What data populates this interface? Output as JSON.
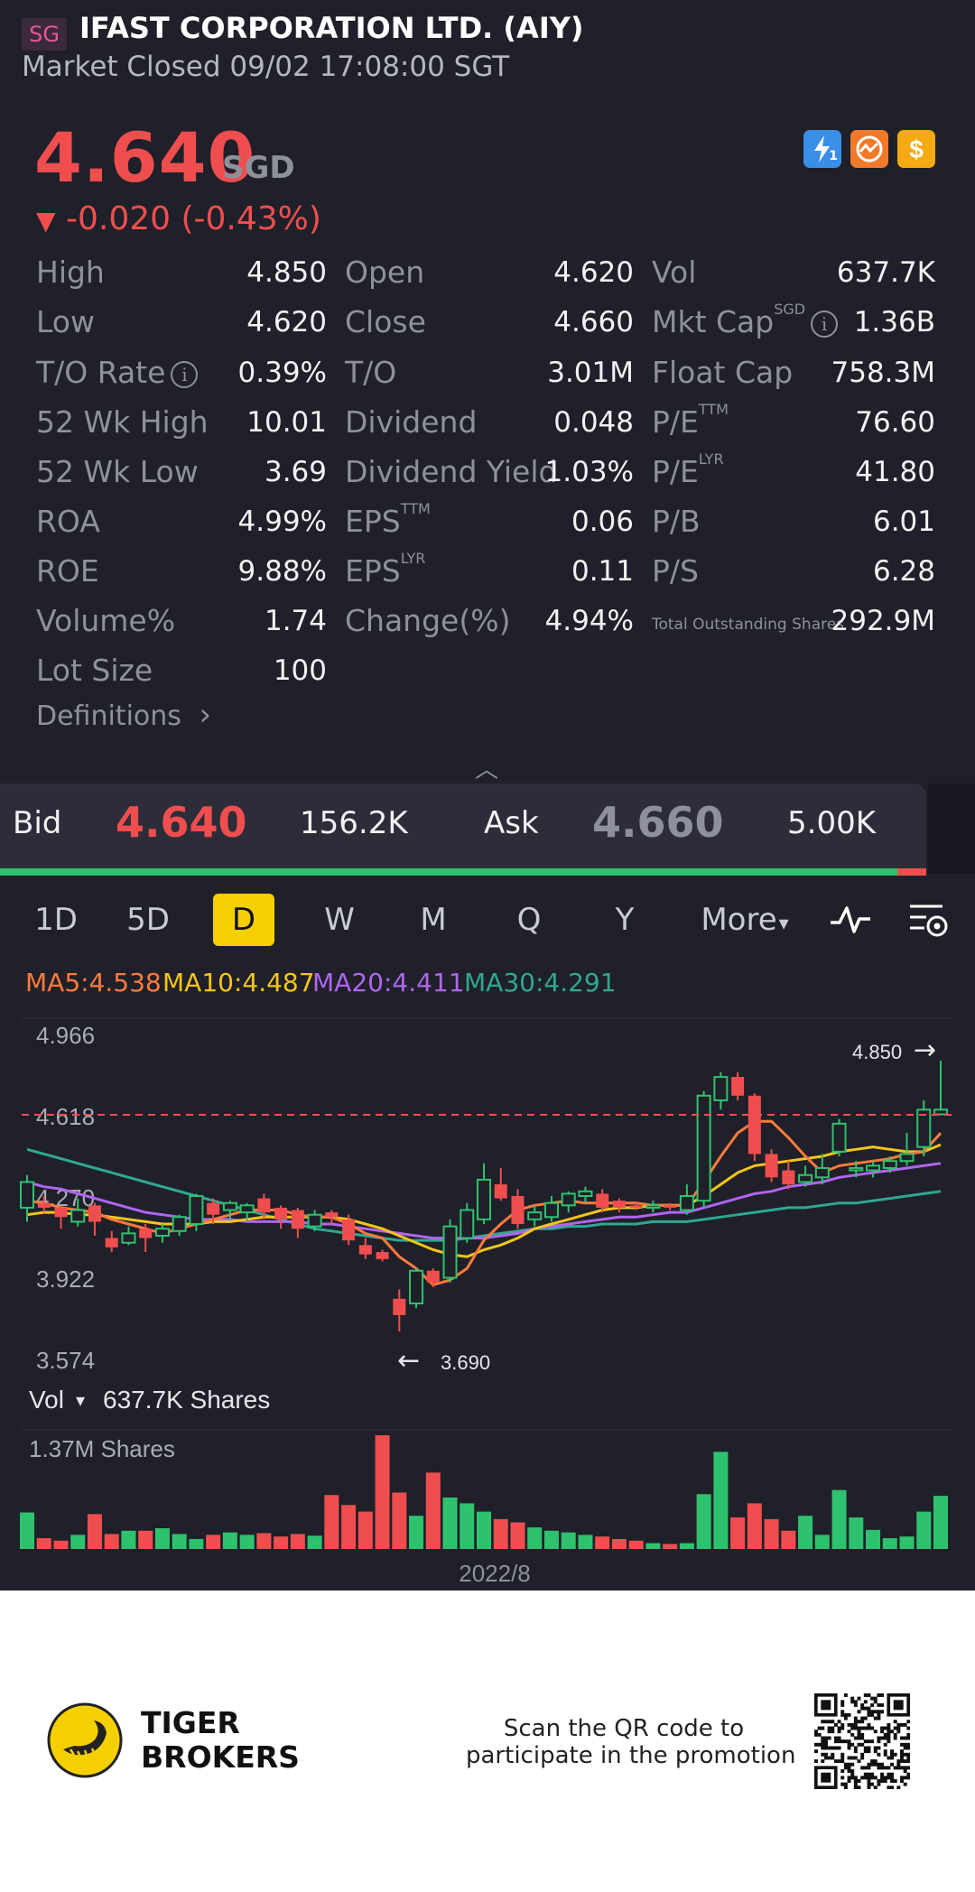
{
  "header": {
    "market_badge": "SG",
    "stock_name": "IFAST CORPORATION LTD. (AIY)",
    "market_status": "Market Closed 09/02 17:08:00 SGT",
    "price": "4.640",
    "currency": "SGD",
    "change_arrow": "▼",
    "change": "-0.020 (-0.43%)",
    "icons": [
      "lightning-icon",
      "trade-icon",
      "dollar-icon"
    ],
    "lightning_sub": "1"
  },
  "stats": {
    "col1": [
      {
        "label": "High",
        "value": "4.850"
      },
      {
        "label": "Low",
        "value": "4.620"
      },
      {
        "label": "T/O Rate",
        "value": "0.39%"
      },
      {
        "label": "52 Wk High",
        "value": "10.01"
      },
      {
        "label": "52 Wk Low",
        "value": "3.69"
      },
      {
        "label": "ROA",
        "value": "4.99%"
      },
      {
        "label": "ROE",
        "value": "9.88%"
      },
      {
        "label": "Volume%",
        "value": "1.74"
      },
      {
        "label": "Lot Size",
        "value": "100"
      }
    ],
    "col2": [
      {
        "label": "Open",
        "value": "4.620"
      },
      {
        "label": "Close",
        "value": "4.660"
      },
      {
        "label": "T/O",
        "value": "3.01M"
      },
      {
        "label": "Dividend",
        "value": "0.048"
      },
      {
        "label": "Dividend Yield",
        "value": "1.03%"
      },
      {
        "label": "EPS",
        "sup": "TTM",
        "value": "0.06"
      },
      {
        "label": "EPS",
        "sup": "LYR",
        "value": "0.11"
      },
      {
        "label": "Change(%)",
        "value": "4.94%"
      }
    ],
    "col3": [
      {
        "label": "Vol",
        "value": "637.7K"
      },
      {
        "label": "Mkt Cap",
        "sup": "SGD",
        "value": "1.36B"
      },
      {
        "label": "Float Cap",
        "value": "758.3M"
      },
      {
        "label": "P/E",
        "sup": "TTM",
        "value": "76.60"
      },
      {
        "label": "P/E",
        "sup": "LYR",
        "value": "41.80"
      },
      {
        "label": "P/B",
        "value": "6.01"
      },
      {
        "label": "P/S",
        "value": "6.28"
      },
      {
        "label": "Total Outstanding Shares",
        "value": "292.9M"
      }
    ],
    "info_glyph": "i"
  },
  "definitions": "Definitions",
  "definitions_arrow": "›",
  "collapse_glyph": "︿",
  "bidask": {
    "bid_label": "Bid",
    "bid_price": "4.640",
    "bid_size": "156.2K",
    "ask_label": "Ask",
    "ask_price": "4.660",
    "ask_size": "5.00K",
    "bid_ratio": 0.969,
    "bid_color": "#2ec26e",
    "ask_color": "#f04e4e"
  },
  "periods": [
    "1D",
    "5D",
    "D",
    "W",
    "M",
    "Q",
    "Y",
    "More"
  ],
  "active_period": "D",
  "more_caret": "▾",
  "ma": [
    {
      "label": "MA5:4.538",
      "color": "#ff7a3c"
    },
    {
      "label": "MA10:4.487",
      "color": "#f5c518"
    },
    {
      "label": "MA20:4.411",
      "color": "#b065f0"
    },
    {
      "label": "MA30:4.291",
      "color": "#2fa891"
    }
  ],
  "colors": {
    "up": "#2ec26e",
    "down": "#f04e4e",
    "bg": "#1f2029"
  },
  "chart_data": {
    "type": "candlestick",
    "y_ticks": [
      "4.966",
      "4.618",
      "4.270",
      "3.922",
      "3.574"
    ],
    "ylim": [
      3.574,
      4.966
    ],
    "current_price": 4.618,
    "max_label": "4.850",
    "min_label": "3.690",
    "max_arrow": "→",
    "min_arrow": "←",
    "x_label": "2022/8",
    "candles": [
      [
        4.22,
        4.33,
        4.16,
        4.36
      ],
      [
        4.24,
        4.22,
        4.2,
        4.27
      ],
      [
        4.22,
        4.18,
        4.13,
        4.23
      ],
      [
        4.16,
        4.21,
        4.14,
        4.26
      ],
      [
        4.23,
        4.16,
        4.1,
        4.24
      ],
      [
        4.09,
        4.05,
        4.03,
        4.12
      ],
      [
        4.07,
        4.11,
        4.06,
        4.14
      ],
      [
        4.13,
        4.09,
        4.03,
        4.15
      ],
      [
        4.1,
        4.13,
        4.07,
        4.15
      ],
      [
        4.12,
        4.18,
        4.1,
        4.19
      ],
      [
        4.15,
        4.27,
        4.12,
        4.28
      ],
      [
        4.24,
        4.19,
        4.15,
        4.26
      ],
      [
        4.21,
        4.24,
        4.17,
        4.25
      ],
      [
        4.2,
        4.23,
        4.16,
        4.24
      ],
      [
        4.26,
        4.2,
        4.17,
        4.28
      ],
      [
        4.22,
        4.17,
        4.13,
        4.23
      ],
      [
        4.21,
        4.13,
        4.09,
        4.22
      ],
      [
        4.14,
        4.19,
        4.12,
        4.21
      ],
      [
        4.2,
        4.18,
        4.15,
        4.21
      ],
      [
        4.17,
        4.08,
        4.06,
        4.19
      ],
      [
        4.06,
        4.02,
        4.0,
        4.09
      ],
      [
        4.03,
        4.0,
        3.99,
        4.04
      ],
      [
        3.83,
        3.76,
        3.69,
        3.87
      ],
      [
        3.81,
        3.95,
        3.79,
        3.96
      ],
      [
        3.95,
        3.9,
        3.88,
        3.96
      ],
      [
        3.92,
        4.14,
        3.9,
        4.17
      ],
      [
        4.09,
        4.21,
        4.07,
        4.24
      ],
      [
        4.17,
        4.34,
        4.15,
        4.41
      ],
      [
        4.32,
        4.26,
        4.25,
        4.39
      ],
      [
        4.27,
        4.15,
        4.13,
        4.3
      ],
      [
        4.17,
        4.2,
        4.14,
        4.23
      ],
      [
        4.18,
        4.24,
        4.16,
        4.27
      ],
      [
        4.23,
        4.28,
        4.2,
        4.29
      ],
      [
        4.27,
        4.29,
        4.24,
        4.31
      ],
      [
        4.28,
        4.22,
        4.2,
        4.3
      ],
      [
        4.25,
        4.22,
        4.2,
        4.26
      ],
      [
        4.23,
        4.22,
        4.21,
        4.24
      ],
      [
        4.22,
        4.23,
        4.2,
        4.25
      ],
      [
        4.23,
        4.22,
        4.21,
        4.24
      ],
      [
        4.21,
        4.27,
        4.19,
        4.32
      ],
      [
        4.25,
        4.7,
        4.22,
        4.72
      ],
      [
        4.68,
        4.78,
        4.64,
        4.8
      ],
      [
        4.78,
        4.7,
        4.68,
        4.8
      ],
      [
        4.7,
        4.45,
        4.42,
        4.71
      ],
      [
        4.45,
        4.35,
        4.33,
        4.47
      ],
      [
        4.38,
        4.32,
        4.3,
        4.42
      ],
      [
        4.33,
        4.36,
        4.31,
        4.4
      ],
      [
        4.35,
        4.39,
        4.32,
        4.45
      ],
      [
        4.46,
        4.58,
        4.44,
        4.6
      ],
      [
        4.38,
        4.39,
        4.35,
        4.42
      ],
      [
        4.38,
        4.4,
        4.35,
        4.42
      ],
      [
        4.39,
        4.42,
        4.37,
        4.44
      ],
      [
        4.42,
        4.45,
        4.4,
        4.54
      ],
      [
        4.48,
        4.64,
        4.44,
        4.68
      ],
      [
        4.62,
        4.64,
        4.62,
        4.85
      ]
    ],
    "ma5": [
      4.25,
      4.24,
      4.22,
      4.21,
      4.2,
      4.17,
      4.15,
      4.13,
      4.11,
      4.13,
      4.15,
      4.17,
      4.19,
      4.21,
      4.21,
      4.21,
      4.19,
      4.18,
      4.18,
      4.15,
      4.11,
      4.09,
      4.01,
      3.96,
      3.89,
      3.91,
      3.96,
      4.08,
      4.15,
      4.21,
      4.23,
      4.24,
      4.25,
      4.24,
      4.24,
      4.24,
      4.24,
      4.23,
      4.23,
      4.23,
      4.33,
      4.44,
      4.54,
      4.59,
      4.59,
      4.52,
      4.44,
      4.37,
      4.4,
      4.41,
      4.42,
      4.43,
      4.45,
      4.46,
      4.54
    ],
    "ma10": [
      4.19,
      4.2,
      4.2,
      4.19,
      4.19,
      4.18,
      4.17,
      4.16,
      4.15,
      4.15,
      4.15,
      4.16,
      4.16,
      4.17,
      4.18,
      4.18,
      4.18,
      4.18,
      4.18,
      4.17,
      4.15,
      4.13,
      4.1,
      4.07,
      4.04,
      4.02,
      4.01,
      4.04,
      4.06,
      4.09,
      4.13,
      4.15,
      4.17,
      4.19,
      4.21,
      4.22,
      4.22,
      4.23,
      4.23,
      4.23,
      4.27,
      4.32,
      4.37,
      4.4,
      4.41,
      4.42,
      4.43,
      4.44,
      4.46,
      4.47,
      4.48,
      4.47,
      4.46,
      4.46,
      4.49
    ],
    "ma20": [
      4.33,
      4.31,
      4.3,
      4.28,
      4.26,
      4.24,
      4.22,
      4.2,
      4.19,
      4.18,
      4.17,
      4.17,
      4.17,
      4.16,
      4.16,
      4.16,
      4.16,
      4.15,
      4.15,
      4.14,
      4.13,
      4.12,
      4.11,
      4.1,
      4.09,
      4.09,
      4.09,
      4.09,
      4.1,
      4.11,
      4.13,
      4.14,
      4.15,
      4.16,
      4.17,
      4.18,
      4.18,
      4.19,
      4.2,
      4.2,
      4.22,
      4.24,
      4.26,
      4.28,
      4.29,
      4.31,
      4.32,
      4.33,
      4.35,
      4.36,
      4.37,
      4.38,
      4.39,
      4.4,
      4.41
    ],
    "ma30": [
      4.47,
      4.45,
      4.43,
      4.41,
      4.39,
      4.37,
      4.35,
      4.33,
      4.31,
      4.29,
      4.27,
      4.25,
      4.23,
      4.21,
      4.19,
      4.17,
      4.15,
      4.13,
      4.12,
      4.11,
      4.1,
      4.09,
      4.08,
      4.08,
      4.08,
      4.08,
      4.09,
      4.1,
      4.11,
      4.12,
      4.13,
      4.13,
      4.14,
      4.14,
      4.15,
      4.15,
      4.15,
      4.16,
      4.16,
      4.16,
      4.17,
      4.18,
      4.19,
      4.2,
      4.21,
      4.22,
      4.22,
      4.23,
      4.24,
      4.24,
      4.25,
      4.26,
      4.27,
      4.28,
      4.29
    ]
  },
  "volume": {
    "label": "Vol",
    "caret": "▾",
    "value": "637.7K Shares",
    "max_label": "1.37M Shares",
    "values": [
      0.44,
      0.13,
      0.1,
      0.17,
      0.42,
      0.18,
      0.22,
      0.22,
      0.25,
      0.18,
      0.12,
      0.17,
      0.2,
      0.17,
      0.19,
      0.15,
      0.18,
      0.16,
      0.65,
      0.53,
      0.45,
      1.37,
      0.68,
      0.4,
      0.92,
      0.62,
      0.55,
      0.45,
      0.36,
      0.32,
      0.26,
      0.22,
      0.2,
      0.17,
      0.15,
      0.12,
      0.1,
      0.07,
      0.06,
      0.07,
      0.66,
      1.17,
      0.38,
      0.55,
      0.36,
      0.22,
      0.4,
      0.17,
      0.71,
      0.38,
      0.23,
      0.13,
      0.15,
      0.45,
      0.64
    ]
  },
  "footer": {
    "brand_line1": "TIGER",
    "brand_line2": "BROKERS",
    "scan_line1": "Scan the QR code to",
    "scan_line2": "participate in the promotion"
  }
}
